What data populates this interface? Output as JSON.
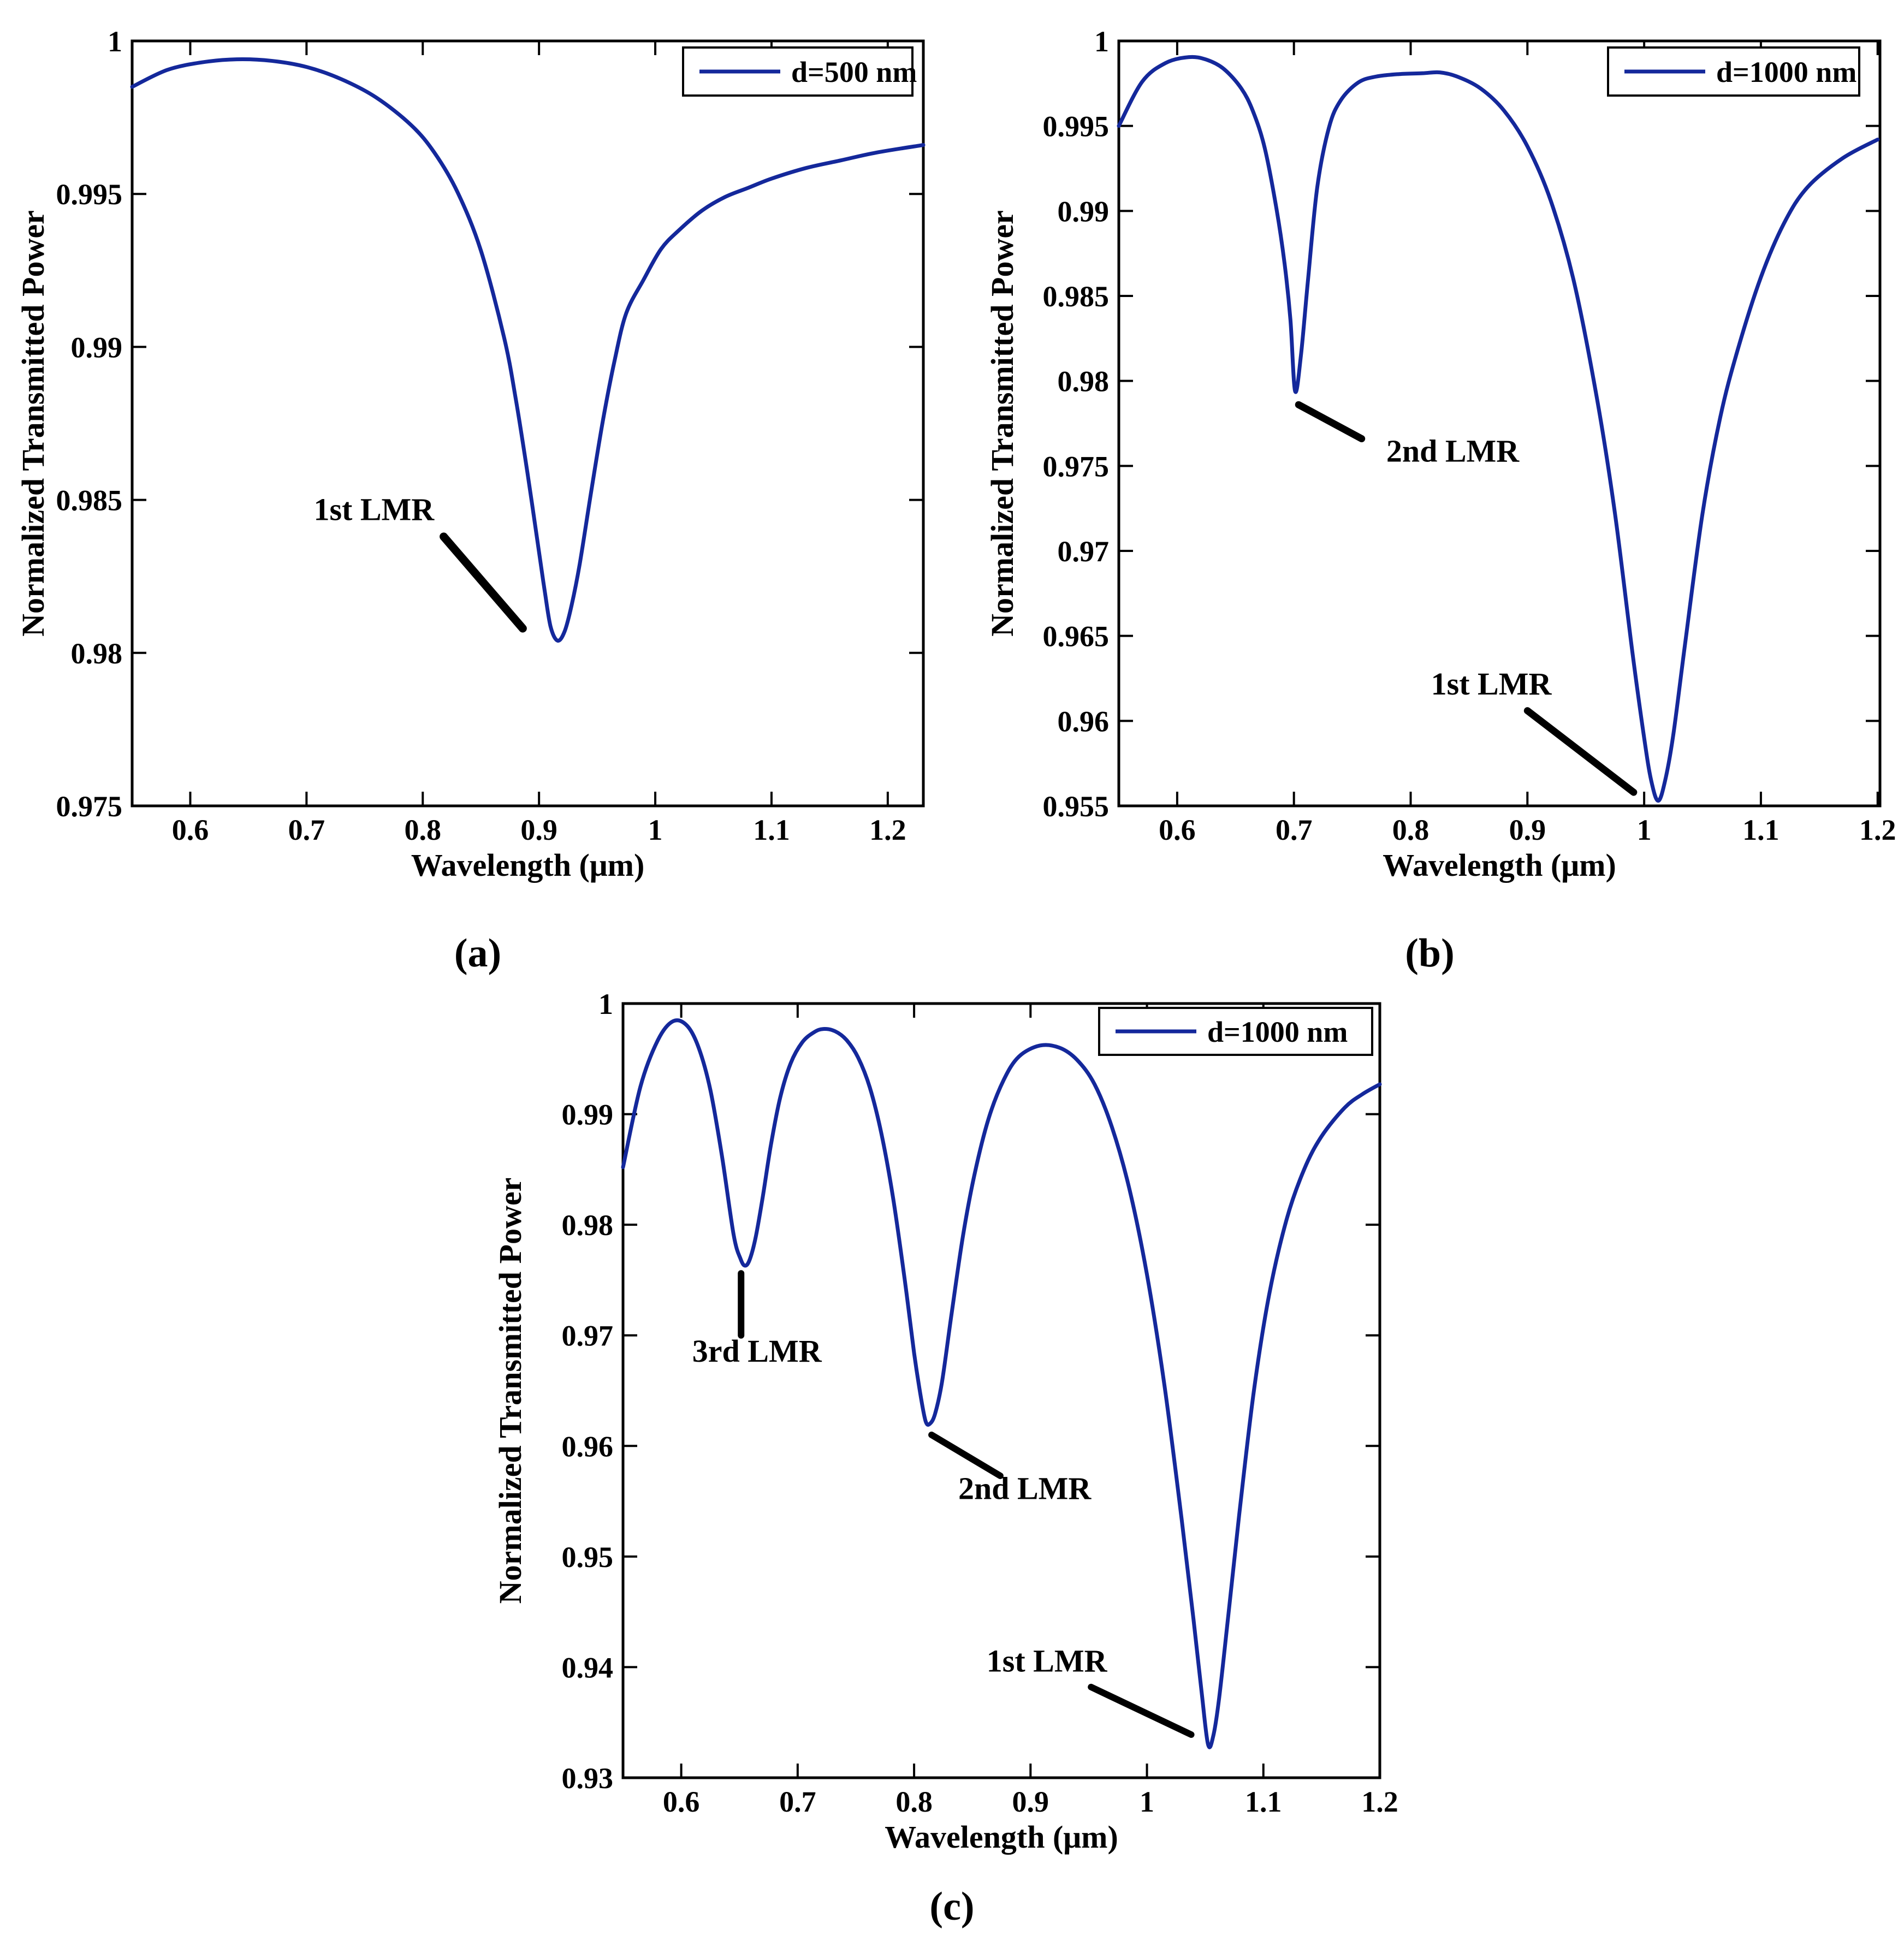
{
  "figure": {
    "background": "#ffffff",
    "axis_color": "#000000",
    "curve_color": "#14289b",
    "captions": [
      "(a)",
      "(b)",
      "(c)"
    ]
  },
  "chart_data": [
    {
      "type": "line",
      "panel": "a",
      "caption": "(a)",
      "xlabel": "Wavelength (μm)",
      "ylabel": "Normalized Transmitted Power",
      "grid": false,
      "legend_position": "top-right",
      "legend_label": "d=500 nm",
      "xlim": [
        0.55,
        1.2306
      ],
      "ylim": [
        0.975,
        1.0
      ],
      "xticks": [
        0.6,
        0.7,
        0.8,
        0.9,
        1.0,
        1.1,
        1.2
      ],
      "xtick_labels": [
        "0.6",
        "0.7",
        "0.8",
        "0.9",
        "1",
        "1.1",
        "1.2"
      ],
      "yticks": [
        0.975,
        0.98,
        0.985,
        0.99,
        0.995,
        1.0
      ],
      "ytick_labels": [
        "0.975",
        "0.98",
        "0.985",
        "0.99",
        "0.995",
        "1"
      ],
      "series": [
        {
          "name": "d=500 nm",
          "color": "#14289b",
          "x": [
            0.55,
            0.58,
            0.61,
            0.64,
            0.67,
            0.7,
            0.73,
            0.76,
            0.79,
            0.81,
            0.83,
            0.85,
            0.87,
            0.88,
            0.89,
            0.9,
            0.905,
            0.91,
            0.916,
            0.922,
            0.928,
            0.935,
            0.945,
            0.955,
            0.965,
            0.975,
            0.99,
            1.005,
            1.02,
            1.04,
            1.06,
            1.08,
            1.1,
            1.13,
            1.16,
            1.19,
            1.2306
          ],
          "y": [
            0.9985,
            0.99905,
            0.9993,
            0.9994,
            0.99935,
            0.99915,
            0.99875,
            0.99815,
            0.99725,
            0.99635,
            0.99505,
            0.99315,
            0.9903,
            0.9883,
            0.9859,
            0.9833,
            0.982,
            0.98085,
            0.9804,
            0.9807,
            0.98155,
            0.9829,
            0.9853,
            0.9876,
            0.98955,
            0.9911,
            0.9922,
            0.9932,
            0.9938,
            0.99445,
            0.9949,
            0.9952,
            0.9955,
            0.99585,
            0.9961,
            0.99635,
            0.9966
          ]
        }
      ],
      "annotations": [
        {
          "text": "1st LMR",
          "text_x": 0.758,
          "text_y": 0.9847,
          "line": {
            "x1": 0.818,
            "y1": 0.9838,
            "x2": 0.886,
            "y2": 0.9808
          }
        }
      ],
      "resonance_dips": [
        {
          "label": "1st LMR",
          "wavelength_um": 0.916,
          "min_power": 0.9804
        }
      ]
    },
    {
      "type": "line",
      "panel": "b",
      "caption": "(b)",
      "xlabel": "Wavelength (μm)",
      "ylabel": "Normalized Transmitted Power",
      "grid": false,
      "legend_position": "top-right",
      "legend_label": "d=1000 nm",
      "xlim": [
        0.55,
        1.202
      ],
      "ylim": [
        0.955,
        1.0
      ],
      "xticks": [
        0.6,
        0.7,
        0.8,
        0.9,
        1.0,
        1.1,
        1.2
      ],
      "xtick_labels": [
        "0.6",
        "0.7",
        "0.8",
        "0.9",
        "1",
        "1.1",
        "1.2"
      ],
      "yticks": [
        0.955,
        0.96,
        0.965,
        0.97,
        0.975,
        0.98,
        0.985,
        0.99,
        0.995,
        1.0
      ],
      "ytick_labels": [
        "0.955",
        "0.96",
        "0.965",
        "0.97",
        "0.975",
        "0.98",
        "0.985",
        "0.99",
        "0.995",
        "1"
      ],
      "series": [
        {
          "name": "d=1000 nm",
          "color": "#14289b",
          "x": [
            0.55,
            0.57,
            0.59,
            0.61,
            0.625,
            0.64,
            0.655,
            0.665,
            0.675,
            0.685,
            0.692,
            0.697,
            0.701,
            0.706,
            0.712,
            0.72,
            0.73,
            0.74,
            0.755,
            0.77,
            0.79,
            0.81,
            0.825,
            0.84,
            0.86,
            0.88,
            0.9,
            0.92,
            0.94,
            0.96,
            0.975,
            0.99,
            1.0,
            1.006,
            1.012,
            1.018,
            1.025,
            1.035,
            1.05,
            1.065,
            1.08,
            1.1,
            1.12,
            1.14,
            1.17,
            1.2
          ],
          "y": [
            0.995,
            0.9976,
            0.9987,
            0.99905,
            0.9989,
            0.99835,
            0.9972,
            0.99585,
            0.9937,
            0.99015,
            0.9869,
            0.9836,
            0.9794,
            0.9815,
            0.9859,
            0.9914,
            0.9949,
            0.9965,
            0.99755,
            0.9979,
            0.99805,
            0.9981,
            0.99815,
            0.9979,
            0.9972,
            0.9959,
            0.9938,
            0.9906,
            0.9858,
            0.9788,
            0.9722,
            0.964,
            0.959,
            0.9565,
            0.9553,
            0.9565,
            0.9592,
            0.9645,
            0.9722,
            0.9778,
            0.9818,
            0.9861,
            0.9893,
            0.9914,
            0.9931,
            0.9942
          ]
        }
      ],
      "annotations": [
        {
          "text": "2nd LMR",
          "text_x": 0.836,
          "text_y": 0.9759,
          "line": {
            "x1": 0.704,
            "y1": 0.9786,
            "x2": 0.758,
            "y2": 0.9766
          }
        },
        {
          "text": "1st LMR",
          "text_x": 0.869,
          "text_y": 0.9622,
          "line": {
            "x1": 0.9,
            "y1": 0.9606,
            "x2": 0.991,
            "y2": 0.9558
          }
        }
      ],
      "resonance_dips": [
        {
          "label": "2nd LMR",
          "wavelength_um": 0.701,
          "min_power": 0.9794
        },
        {
          "label": "1st LMR",
          "wavelength_um": 1.012,
          "min_power": 0.9553
        }
      ]
    },
    {
      "type": "line",
      "panel": "c",
      "caption": "(c)",
      "xlabel": "Wavelength (μm)",
      "ylabel": "Normalized Transmitted Power",
      "grid": false,
      "legend_position": "top-right",
      "legend_label": "d=1000 nm",
      "xlim": [
        0.55,
        1.2
      ],
      "ylim": [
        0.93,
        1.0
      ],
      "xticks": [
        0.6,
        0.7,
        0.8,
        0.9,
        1.0,
        1.1,
        1.2
      ],
      "xtick_labels": [
        "0.6",
        "0.7",
        "0.8",
        "0.9",
        "1",
        "1.1",
        "1.2"
      ],
      "yticks": [
        0.93,
        0.94,
        0.95,
        0.96,
        0.97,
        0.98,
        0.99,
        1.0
      ],
      "ytick_labels": [
        "0.93",
        "0.94",
        "0.95",
        "0.96",
        "0.97",
        "0.98",
        "0.99",
        "1"
      ],
      "series": [
        {
          "name": "d=1000 nm",
          "color": "#14289b",
          "x": [
            0.55,
            0.565,
            0.58,
            0.593,
            0.605,
            0.615,
            0.625,
            0.635,
            0.645,
            0.651,
            0.655,
            0.659,
            0.664,
            0.67,
            0.677,
            0.685,
            0.694,
            0.704,
            0.714,
            0.722,
            0.732,
            0.742,
            0.752,
            0.762,
            0.772,
            0.782,
            0.792,
            0.8,
            0.806,
            0.81,
            0.8135,
            0.818,
            0.824,
            0.832,
            0.842,
            0.852,
            0.864,
            0.877,
            0.89,
            0.908,
            0.925,
            0.94,
            0.955,
            0.97,
            0.985,
            1.0,
            1.015,
            1.03,
            1.04,
            1.047,
            1.0525,
            1.057,
            1.062,
            1.07,
            1.08,
            1.092,
            1.105,
            1.12,
            1.135,
            1.15,
            1.17,
            1.185,
            1.2
          ],
          "y": [
            0.9852,
            0.9925,
            0.9967,
            0.9984,
            0.998,
            0.996,
            0.9922,
            0.9862,
            0.9791,
            0.9769,
            0.9763,
            0.9769,
            0.9789,
            0.9825,
            0.9872,
            0.9915,
            0.9946,
            0.9965,
            0.9974,
            0.9977,
            0.9975,
            0.9967,
            0.9951,
            0.9924,
            0.9882,
            0.9824,
            0.975,
            0.9684,
            0.9643,
            0.9622,
            0.962,
            0.9629,
            0.9658,
            0.9718,
            0.979,
            0.9846,
            0.9896,
            0.9931,
            0.9952,
            0.9962,
            0.996,
            0.9949,
            0.9927,
            0.9888,
            0.9832,
            0.9755,
            0.9655,
            0.9532,
            0.9443,
            0.9377,
            0.933,
            0.9338,
            0.9372,
            0.9448,
            0.9545,
            0.9651,
            0.9737,
            0.9805,
            0.985,
            0.988,
            0.9906,
            0.9918,
            0.9927
          ]
        }
      ],
      "annotations": [
        {
          "text": "3rd LMR",
          "text_x": 0.665,
          "text_y": 0.9686,
          "line": {
            "x1": 0.6514,
            "y1": 0.9756,
            "x2": 0.6514,
            "y2": 0.97
          }
        },
        {
          "text": "2nd LMR",
          "text_x": 0.895,
          "text_y": 0.9562,
          "line": {
            "x1": 0.815,
            "y1": 0.961,
            "x2": 0.874,
            "y2": 0.9573
          }
        },
        {
          "text": "1st LMR",
          "text_x": 0.914,
          "text_y": 0.9406,
          "line": {
            "x1": 0.952,
            "y1": 0.9382,
            "x2": 1.038,
            "y2": 0.9339
          }
        }
      ],
      "resonance_dips": [
        {
          "label": "3rd LMR",
          "wavelength_um": 0.655,
          "min_power": 0.9763
        },
        {
          "label": "2nd LMR",
          "wavelength_um": 0.81,
          "min_power": 0.962
        },
        {
          "label": "1st LMR",
          "wavelength_um": 1.053,
          "min_power": 0.933
        }
      ]
    }
  ]
}
